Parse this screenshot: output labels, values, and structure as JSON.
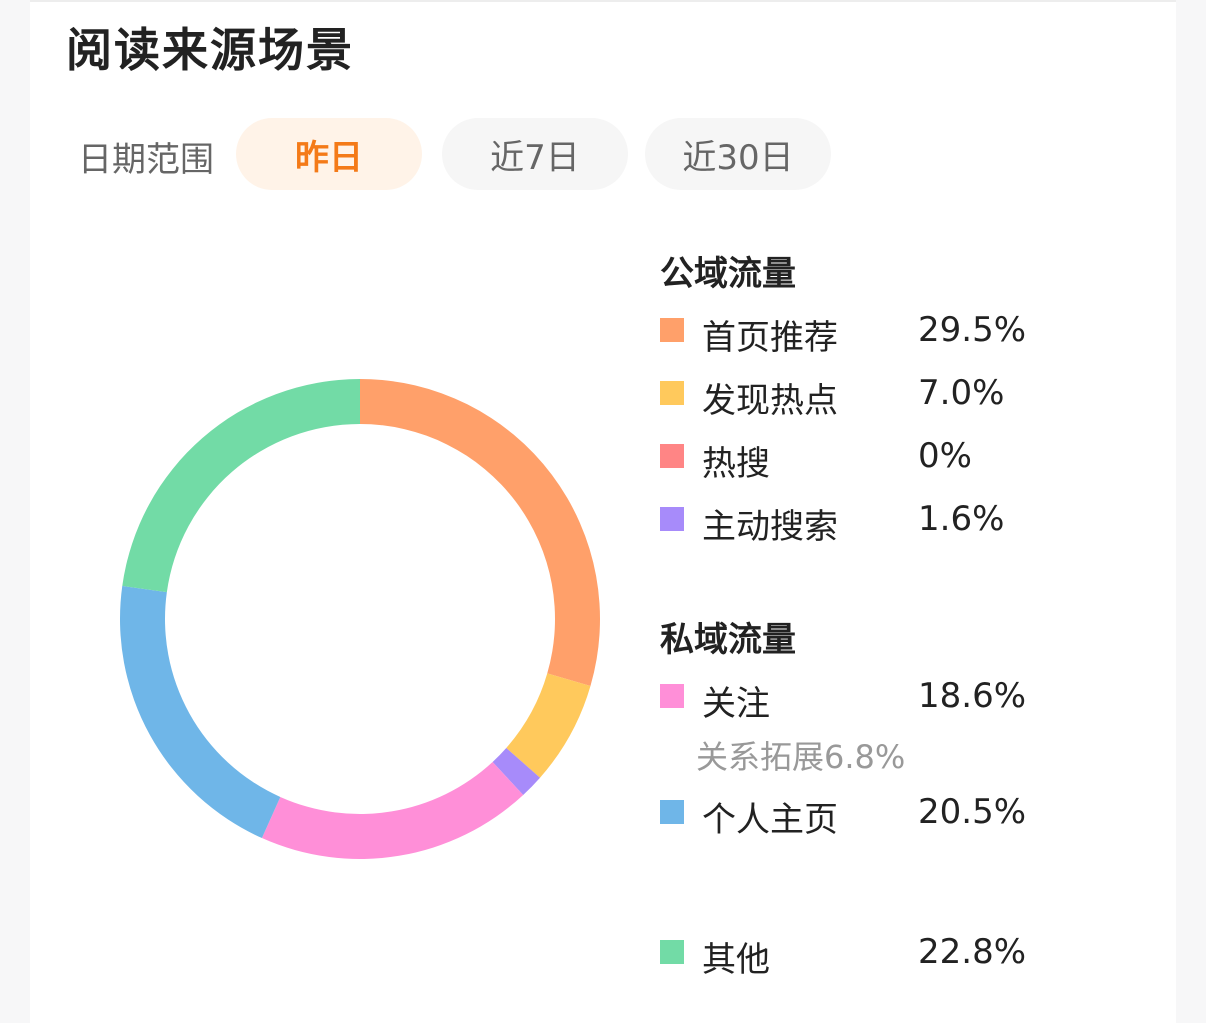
{
  "title": "阅读来源场景",
  "date_range": {
    "label": "日期范围",
    "options": [
      "昨日",
      "近7日",
      "近30日"
    ],
    "selected": "昨日"
  },
  "groups": {
    "public": "公域流量",
    "private": "私域流量"
  },
  "legend": {
    "public": [
      {
        "label": "首页推荐",
        "value": "29.5%",
        "color": "#FFA06A"
      },
      {
        "label": "发现热点",
        "value": "7.0%",
        "color": "#FFC95C"
      },
      {
        "label": "热搜",
        "value": "0%",
        "color": "#FF8585"
      },
      {
        "label": "主动搜索",
        "value": "1.6%",
        "color": "#A78BFA"
      }
    ],
    "private": [
      {
        "label": "关注",
        "value": "18.6%",
        "color": "#FF8FD8",
        "note": "关系拓展6.8%"
      },
      {
        "label": "个人主页",
        "value": "20.5%",
        "color": "#6FB6E8"
      }
    ],
    "other": {
      "label": "其他",
      "value": "22.8%",
      "color": "#72DBA6"
    }
  },
  "chart_data": {
    "type": "pie",
    "style": "donut",
    "title": "阅读来源场景",
    "categories": [
      "首页推荐",
      "发现热点",
      "热搜",
      "主动搜索",
      "关注",
      "个人主页",
      "其他"
    ],
    "values": [
      29.5,
      7.0,
      0,
      1.6,
      18.6,
      20.5,
      22.8
    ],
    "colors": [
      "#FFA06A",
      "#FFC95C",
      "#FF8585",
      "#A78BFA",
      "#FF8FD8",
      "#6FB6E8",
      "#72DBA6"
    ],
    "start": "top",
    "direction": "clockwise"
  }
}
